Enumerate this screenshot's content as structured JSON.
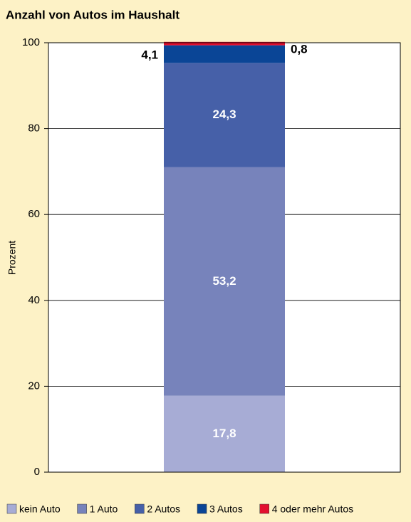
{
  "chart_data": {
    "type": "stacked-bar",
    "title": "Anzahl von Autos im Haushalt",
    "y_label": "Prozent",
    "categories": [
      null
    ],
    "series": [
      {
        "name": "kein Auto",
        "color": "#a7acd5",
        "values": [
          17.8
        ],
        "value_labels": [
          "17,8"
        ]
      },
      {
        "name": "1 Auto",
        "color": "#7783bb",
        "values": [
          53.2
        ],
        "value_labels": [
          "53,2"
        ]
      },
      {
        "name": "2 Autos",
        "color": "#4660a8",
        "values": [
          24.3
        ],
        "value_labels": [
          "24,3"
        ]
      },
      {
        "name": "3 Autos",
        "color": "#0a4596",
        "values": [
          4.1
        ],
        "value_labels": [
          "4,1"
        ]
      },
      {
        "name": "4 oder mehr Autos",
        "color": "#e3102f",
        "values": [
          0.8
        ],
        "value_labels": [
          "0,8"
        ]
      }
    ],
    "ylim": [
      0,
      100
    ],
    "yticks": [
      0,
      20,
      40,
      60,
      80,
      100
    ],
    "grid": true
  }
}
